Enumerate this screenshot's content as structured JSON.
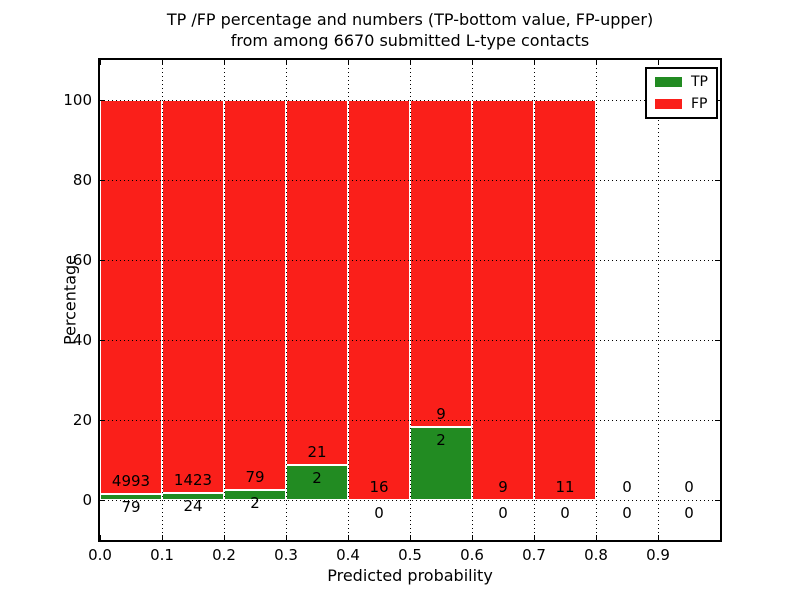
{
  "chart_data": {
    "type": "bar",
    "subtype": "stacked-percentage-histogram",
    "title_line1": "TP /FP percentage and numbers (TP-bottom value, FP-upper)",
    "title_line2": "from among 6670 submitted L-type contacts",
    "xlabel": "Predicted probability",
    "ylabel": "Percentage",
    "xlim": [
      0.0,
      1.0
    ],
    "ylim": [
      -10,
      110
    ],
    "x_ticks": [
      "0.0",
      "0.1",
      "0.2",
      "0.3",
      "0.4",
      "0.5",
      "0.6",
      "0.7",
      "0.8",
      "0.9"
    ],
    "y_ticks": [
      "0",
      "20",
      "40",
      "60",
      "80",
      "100"
    ],
    "grid": true,
    "grid_style": "dotted",
    "bin_width": 0.1,
    "bins": [
      {
        "x_start": 0.0,
        "tp": 79,
        "fp": 4993
      },
      {
        "x_start": 0.1,
        "tp": 24,
        "fp": 1423
      },
      {
        "x_start": 0.2,
        "tp": 2,
        "fp": 79
      },
      {
        "x_start": 0.3,
        "tp": 2,
        "fp": 21
      },
      {
        "x_start": 0.4,
        "tp": 0,
        "fp": 16
      },
      {
        "x_start": 0.5,
        "tp": 2,
        "fp": 9
      },
      {
        "x_start": 0.6,
        "tp": 0,
        "fp": 9
      },
      {
        "x_start": 0.7,
        "tp": 0,
        "fp": 11
      },
      {
        "x_start": 0.8,
        "tp": 0,
        "fp": 0
      },
      {
        "x_start": 0.9,
        "tp": 0,
        "fp": 0
      }
    ],
    "legend": {
      "position": "upper right",
      "entries": [
        {
          "label": "TP",
          "color": "#228b22"
        },
        {
          "label": "FP",
          "color": "#fa1f1a"
        }
      ]
    },
    "colors": {
      "tp": "#228b22",
      "fp": "#fa1f1a",
      "bar_edge": "#ffffff",
      "grid": "#000000",
      "background": "#ffffff"
    }
  }
}
